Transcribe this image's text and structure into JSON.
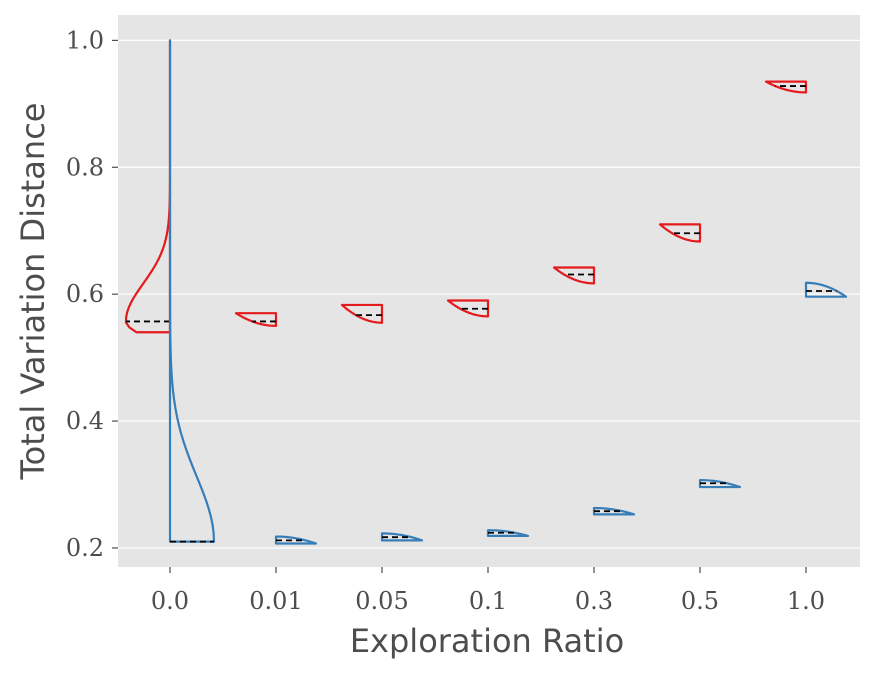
{
  "chart_data": {
    "type": "violin",
    "xlabel": "Exploration Ratio",
    "ylabel": "Total Variation Distance",
    "categories": [
      "0.0",
      "0.01",
      "0.05",
      "0.1",
      "0.3",
      "0.5",
      "1.0"
    ],
    "ylim": [
      0.17,
      1.04
    ],
    "yticks": [
      0.2,
      0.4,
      0.6,
      0.8,
      1.0
    ],
    "ytick_labels": [
      "0.2",
      "0.4",
      "0.6",
      "0.8",
      "1.0"
    ],
    "grid": true,
    "legend": null,
    "colors": {
      "background": "#e5e5e5",
      "grid": "#ffffff",
      "series_red": "#e41a1c",
      "series_blue": "#377eb8",
      "median": "#000000",
      "text": "#4d4d4d"
    },
    "series": [
      {
        "color": "#e41a1c",
        "side": "left",
        "violins": [
          {
            "min": 0.54,
            "max": 1.0,
            "median": 0.557,
            "shape": "long_tail"
          },
          {
            "min": 0.55,
            "max": 0.57,
            "median": 0.557,
            "shape": "wedge"
          },
          {
            "min": 0.555,
            "max": 0.583,
            "median": 0.567,
            "shape": "wedge"
          },
          {
            "min": 0.565,
            "max": 0.59,
            "median": 0.577,
            "shape": "wedge"
          },
          {
            "min": 0.617,
            "max": 0.642,
            "median": 0.631,
            "shape": "wedge"
          },
          {
            "min": 0.683,
            "max": 0.71,
            "median": 0.696,
            "shape": "wedge"
          },
          {
            "min": 0.918,
            "max": 0.935,
            "median": 0.928,
            "shape": "wedge"
          }
        ]
      },
      {
        "color": "#377eb8",
        "side": "right",
        "violins": [
          {
            "min": 0.21,
            "max": 1.0,
            "median": 0.21,
            "shape": "long_tail"
          },
          {
            "min": 0.207,
            "max": 0.218,
            "median": 0.212,
            "shape": "wedge"
          },
          {
            "min": 0.212,
            "max": 0.223,
            "median": 0.217,
            "shape": "wedge"
          },
          {
            "min": 0.219,
            "max": 0.228,
            "median": 0.224,
            "shape": "wedge"
          },
          {
            "min": 0.253,
            "max": 0.263,
            "median": 0.258,
            "shape": "wedge"
          },
          {
            "min": 0.296,
            "max": 0.307,
            "median": 0.302,
            "shape": "wedge"
          },
          {
            "min": 0.596,
            "max": 0.618,
            "median": 0.605,
            "shape": "wedge"
          }
        ]
      }
    ]
  }
}
